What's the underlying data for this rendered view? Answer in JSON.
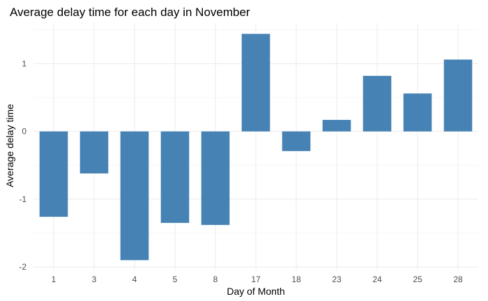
{
  "chart_data": {
    "type": "bar",
    "title": "Average delay time for each day in November",
    "xlabel": "Day of Month",
    "ylabel": "Average delay time",
    "categories": [
      "1",
      "3",
      "4",
      "5",
      "8",
      "17",
      "18",
      "23",
      "24",
      "25",
      "28"
    ],
    "values": [
      -1.26,
      -0.62,
      -1.9,
      -1.35,
      -1.38,
      1.44,
      -0.29,
      0.17,
      0.82,
      0.56,
      1.06
    ],
    "yticks": [
      "-2",
      "-1",
      "0",
      "1"
    ],
    "ylim": [
      -2.05,
      1.6
    ],
    "bar_color": "#4682B4",
    "grid": true,
    "legend": "none"
  }
}
